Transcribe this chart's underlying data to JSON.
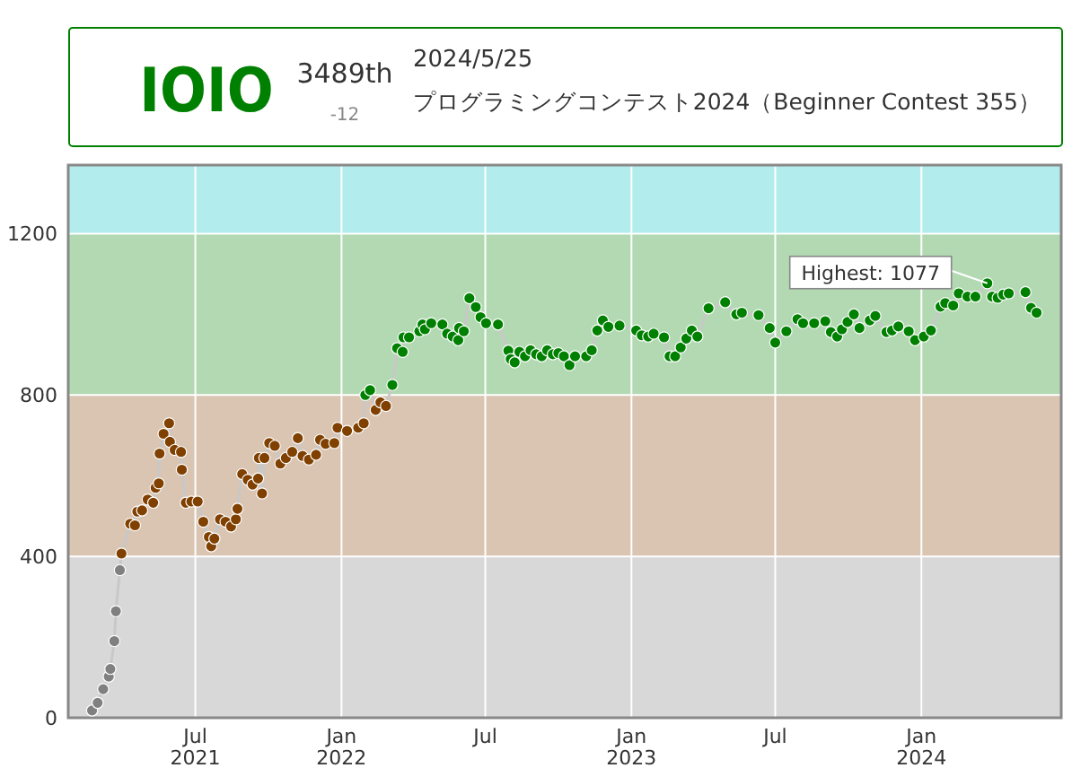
{
  "chart_data": {
    "type": "line",
    "title": "プログラミングコンテスト2024（Beginner Contest 355）",
    "subtitle": "2024/5/25",
    "annotations": [
      "IOIO",
      "3489th",
      "-12",
      {
        "text": "Highest: 1077",
        "x": "2024-03-24",
        "y": 1077
      }
    ],
    "xlim": [
      "2021-01-22",
      "2024-06-25"
    ],
    "xticks": [
      {
        "value": "2021-07-01",
        "label": "Jul\n2021"
      },
      {
        "value": "2022-01-01",
        "label": "Jan\n2022"
      },
      {
        "value": "2022-07-01",
        "label": "Jul"
      },
      {
        "value": "2023-01-01",
        "label": "Jan\n2023"
      },
      {
        "value": "2023-07-01",
        "label": "Jul"
      },
      {
        "value": "2024-01-01",
        "label": "Jan\n2024"
      }
    ],
    "ylim": [
      0,
      1370
    ],
    "yticks": [
      0,
      400,
      800,
      1200
    ],
    "grid": true,
    "marker": "circle",
    "line_style": "solid",
    "bands": [
      {
        "axis": "y",
        "from": 0,
        "to": 400,
        "color": "#d8d8d8"
      },
      {
        "axis": "y",
        "from": 400,
        "to": 800,
        "color": "#d9c5b2"
      },
      {
        "axis": "y",
        "from": 800,
        "to": 1200,
        "color": "#b2d9b2"
      },
      {
        "axis": "y",
        "from": 1200,
        "to": 1370,
        "color": "#b2ecec"
      }
    ],
    "series": [
      {
        "color": "#c8c8c8",
        "x": [
          "2021-02-21",
          "2021-02-28",
          "2021-03-07",
          "2021-03-14",
          "2021-03-16",
          "2021-03-21",
          "2021-03-23",
          "2021-03-28",
          "2021-03-30",
          "2021-04-10",
          "2021-04-16",
          "2021-04-19",
          "2021-04-25",
          "2021-05-02",
          "2021-05-09",
          "2021-05-12",
          "2021-05-16",
          "2021-05-17",
          "2021-05-22",
          "2021-05-29",
          "2021-05-30",
          "2021-06-05",
          "2021-06-13",
          "2021-06-14",
          "2021-06-19",
          "2021-06-26",
          "2021-07-04",
          "2021-07-11",
          "2021-07-18",
          "2021-07-21",
          "2021-07-25",
          "2021-08-01",
          "2021-08-08",
          "2021-08-15",
          "2021-08-21",
          "2021-08-23",
          "2021-08-29",
          "2021-09-05",
          "2021-09-11",
          "2021-09-18",
          "2021-09-19",
          "2021-09-23",
          "2021-09-26",
          "2021-10-02",
          "2021-10-09",
          "2021-10-16",
          "2021-10-23",
          "2021-10-31",
          "2021-11-07",
          "2021-11-13",
          "2021-11-21",
          "2021-11-30",
          "2021-12-05",
          "2021-12-12",
          "2021-12-23",
          "2021-12-27",
          "2022-01-08",
          "2022-01-22",
          "2022-01-29",
          "2022-01-31",
          "2022-02-06",
          "2022-02-13",
          "2022-02-19",
          "2022-02-26",
          "2022-03-06",
          "2022-03-12",
          "2022-03-19",
          "2022-03-20",
          "2022-03-27",
          "2022-04-09",
          "2022-04-13",
          "2022-04-16",
          "2022-04-24",
          "2022-05-08",
          "2022-05-14",
          "2022-05-21",
          "2022-05-28",
          "2022-05-29",
          "2022-06-04",
          "2022-06-11",
          "2022-06-19",
          "2022-06-25",
          "2022-07-02",
          "2022-07-17",
          "2022-07-30",
          "2022-08-02",
          "2022-08-07",
          "2022-08-13",
          "2022-08-20",
          "2022-08-27",
          "2022-09-03",
          "2022-09-10",
          "2022-09-17",
          "2022-09-24",
          "2022-10-01",
          "2022-10-08",
          "2022-10-15",
          "2022-10-22",
          "2022-11-05",
          "2022-11-12",
          "2022-11-19",
          "2022-11-26",
          "2022-12-03",
          "2022-12-17",
          "2023-01-07",
          "2023-01-14",
          "2023-01-22",
          "2023-01-29",
          "2023-02-11",
          "2023-02-18",
          "2023-02-25",
          "2023-03-04",
          "2023-03-11",
          "2023-03-18",
          "2023-03-25",
          "2023-04-08",
          "2023-04-29",
          "2023-05-13",
          "2023-05-20",
          "2023-06-10",
          "2023-06-24",
          "2023-07-01",
          "2023-07-15",
          "2023-07-29",
          "2023-08-05",
          "2023-08-19",
          "2023-09-02",
          "2023-09-09",
          "2023-09-17",
          "2023-09-23",
          "2023-09-30",
          "2023-10-08",
          "2023-10-15",
          "2023-10-28",
          "2023-11-04",
          "2023-11-18",
          "2023-11-25",
          "2023-12-03",
          "2023-12-16",
          "2023-12-24",
          "2024-01-04",
          "2024-01-13",
          "2024-01-25",
          "2024-01-31",
          "2024-02-10",
          "2024-02-17",
          "2024-02-28",
          "2024-03-09",
          "2024-03-24",
          "2024-03-30",
          "2024-04-06",
          "2024-04-13",
          "2024-04-20",
          "2024-05-11",
          "2024-05-18",
          "2024-05-25"
        ],
        "values": [
          18,
          37,
          71,
          102,
          121,
          190,
          264,
          366,
          407,
          481,
          477,
          511,
          514,
          541,
          533,
          570,
          581,
          655,
          704,
          730,
          684,
          664,
          659,
          615,
          533,
          536,
          536,
          486,
          448,
          425,
          444,
          492,
          486,
          474,
          492,
          518,
          604,
          590,
          578,
          593,
          644,
          556,
          644,
          681,
          674,
          630,
          644,
          659,
          693,
          649,
          640,
          652,
          689,
          679,
          681,
          719,
          711,
          719,
          730,
          800,
          812,
          763,
          782,
          773,
          825,
          916,
          907,
          943,
          943,
          958,
          975,
          963,
          978,
          975,
          952,
          945,
          936,
          966,
          958,
          1040,
          1018,
          993,
          978,
          975,
          910,
          889,
          881,
          907,
          896,
          911,
          901,
          896,
          911,
          901,
          904,
          896,
          874,
          896,
          896,
          911,
          960,
          985,
          969,
          972,
          960,
          948,
          945,
          952,
          943,
          896,
          896,
          918,
          940,
          960,
          945,
          1015,
          1030,
          1000,
          1004,
          998,
          966,
          930,
          958,
          988,
          978,
          978,
          983,
          956,
          945,
          963,
          981,
          1000,
          966,
          985,
          996,
          956,
          960,
          970,
          958,
          936,
          945,
          960,
          1019,
          1028,
          1022,
          1052,
          1044,
          1044,
          1077,
          1044,
          1041,
          1049,
          1052,
          1055,
          1016,
          1004
        ],
        "colors": [
          "#808080",
          "#808080",
          "#808080",
          "#808080",
          "#808080",
          "#808080",
          "#808080",
          "#808080",
          "#804000",
          "#804000",
          "#804000",
          "#804000",
          "#804000",
          "#804000",
          "#804000",
          "#804000",
          "#804000",
          "#804000",
          "#804000",
          "#804000",
          "#804000",
          "#804000",
          "#804000",
          "#804000",
          "#804000",
          "#804000",
          "#804000",
          "#804000",
          "#804000",
          "#804000",
          "#804000",
          "#804000",
          "#804000",
          "#804000",
          "#804000",
          "#804000",
          "#804000",
          "#804000",
          "#804000",
          "#804000",
          "#804000",
          "#804000",
          "#804000",
          "#804000",
          "#804000",
          "#804000",
          "#804000",
          "#804000",
          "#804000",
          "#804000",
          "#804000",
          "#804000",
          "#804000",
          "#804000",
          "#804000",
          "#804000",
          "#804000",
          "#804000",
          "#804000",
          "#008000",
          "#008000",
          "#804000",
          "#804000",
          "#804000",
          "#008000",
          "#008000",
          "#008000",
          "#008000",
          "#008000",
          "#008000",
          "#008000",
          "#008000",
          "#008000",
          "#008000",
          "#008000",
          "#008000",
          "#008000",
          "#008000",
          "#008000",
          "#008000",
          "#008000",
          "#008000",
          "#008000",
          "#008000",
          "#008000",
          "#008000",
          "#008000",
          "#008000",
          "#008000",
          "#008000",
          "#008000",
          "#008000",
          "#008000",
          "#008000",
          "#008000",
          "#008000",
          "#008000",
          "#008000",
          "#008000",
          "#008000",
          "#008000",
          "#008000",
          "#008000",
          "#008000",
          "#008000",
          "#008000",
          "#008000",
          "#008000",
          "#008000",
          "#008000",
          "#008000",
          "#008000",
          "#008000",
          "#008000",
          "#008000",
          "#008000",
          "#008000",
          "#008000",
          "#008000",
          "#008000",
          "#008000",
          "#008000",
          "#008000",
          "#008000",
          "#008000",
          "#008000",
          "#008000",
          "#008000",
          "#008000",
          "#008000",
          "#008000",
          "#008000",
          "#008000",
          "#008000",
          "#008000",
          "#008000",
          "#008000",
          "#008000",
          "#008000",
          "#008000",
          "#008000",
          "#008000",
          "#008000",
          "#008000",
          "#008000",
          "#008000",
          "#008000",
          "#008000",
          "#008000",
          "#008000",
          "#008000",
          "#008000",
          "#008000",
          "#008000",
          "#008000",
          "#008000"
        ]
      }
    ]
  }
}
